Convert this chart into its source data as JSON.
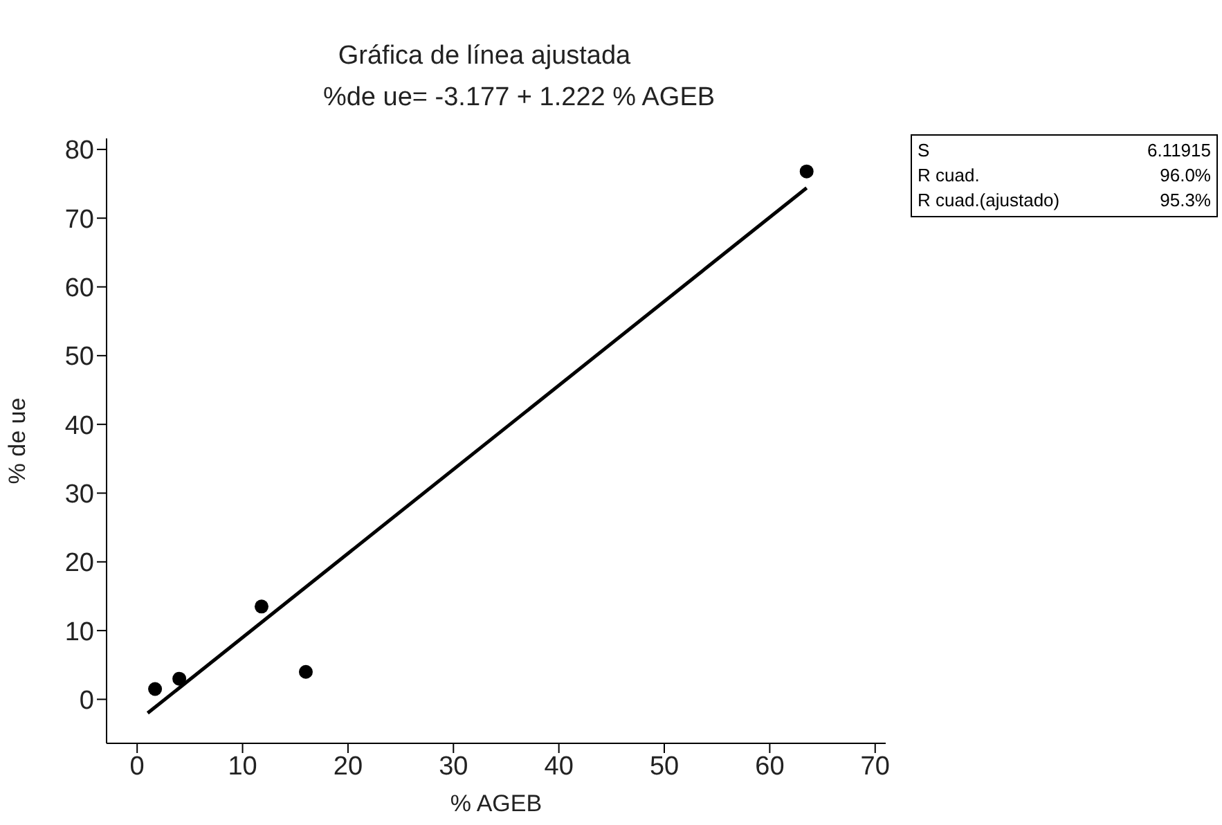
{
  "chart_data": {
    "type": "scatter",
    "title": "Gráfica de línea ajustada",
    "subtitle": "%de ue= -3.177 + 1.222 % AGEB",
    "xlabel": "% AGEB",
    "ylabel": "% de ue",
    "series": [
      {
        "color": "#000000",
        "x": [
          1.7,
          4,
          11.8,
          16,
          63.5
        ],
        "values": [
          1.5,
          3,
          13.5,
          4,
          76.8
        ],
        "marker": "circle"
      },
      {
        "type": "line",
        "color": "#000000",
        "x": [
          1,
          63.5
        ],
        "values": [
          -2.0,
          74.4
        ],
        "marker": "none",
        "line_style": "solid"
      }
    ],
    "xlim": [
      -2.9,
      71
    ],
    "xticks": [
      0,
      10,
      20,
      30,
      40,
      50,
      60,
      70
    ],
    "ylim": [
      -6.4,
      81.6
    ],
    "yticks": [
      0,
      10,
      20,
      30,
      40,
      50,
      60,
      70,
      80
    ],
    "grid": false,
    "legend": false,
    "annotations": [
      "S 6.11915",
      "R cuad. 96.0%",
      "R cuad.(ajustado) 95.3%"
    ]
  }
}
